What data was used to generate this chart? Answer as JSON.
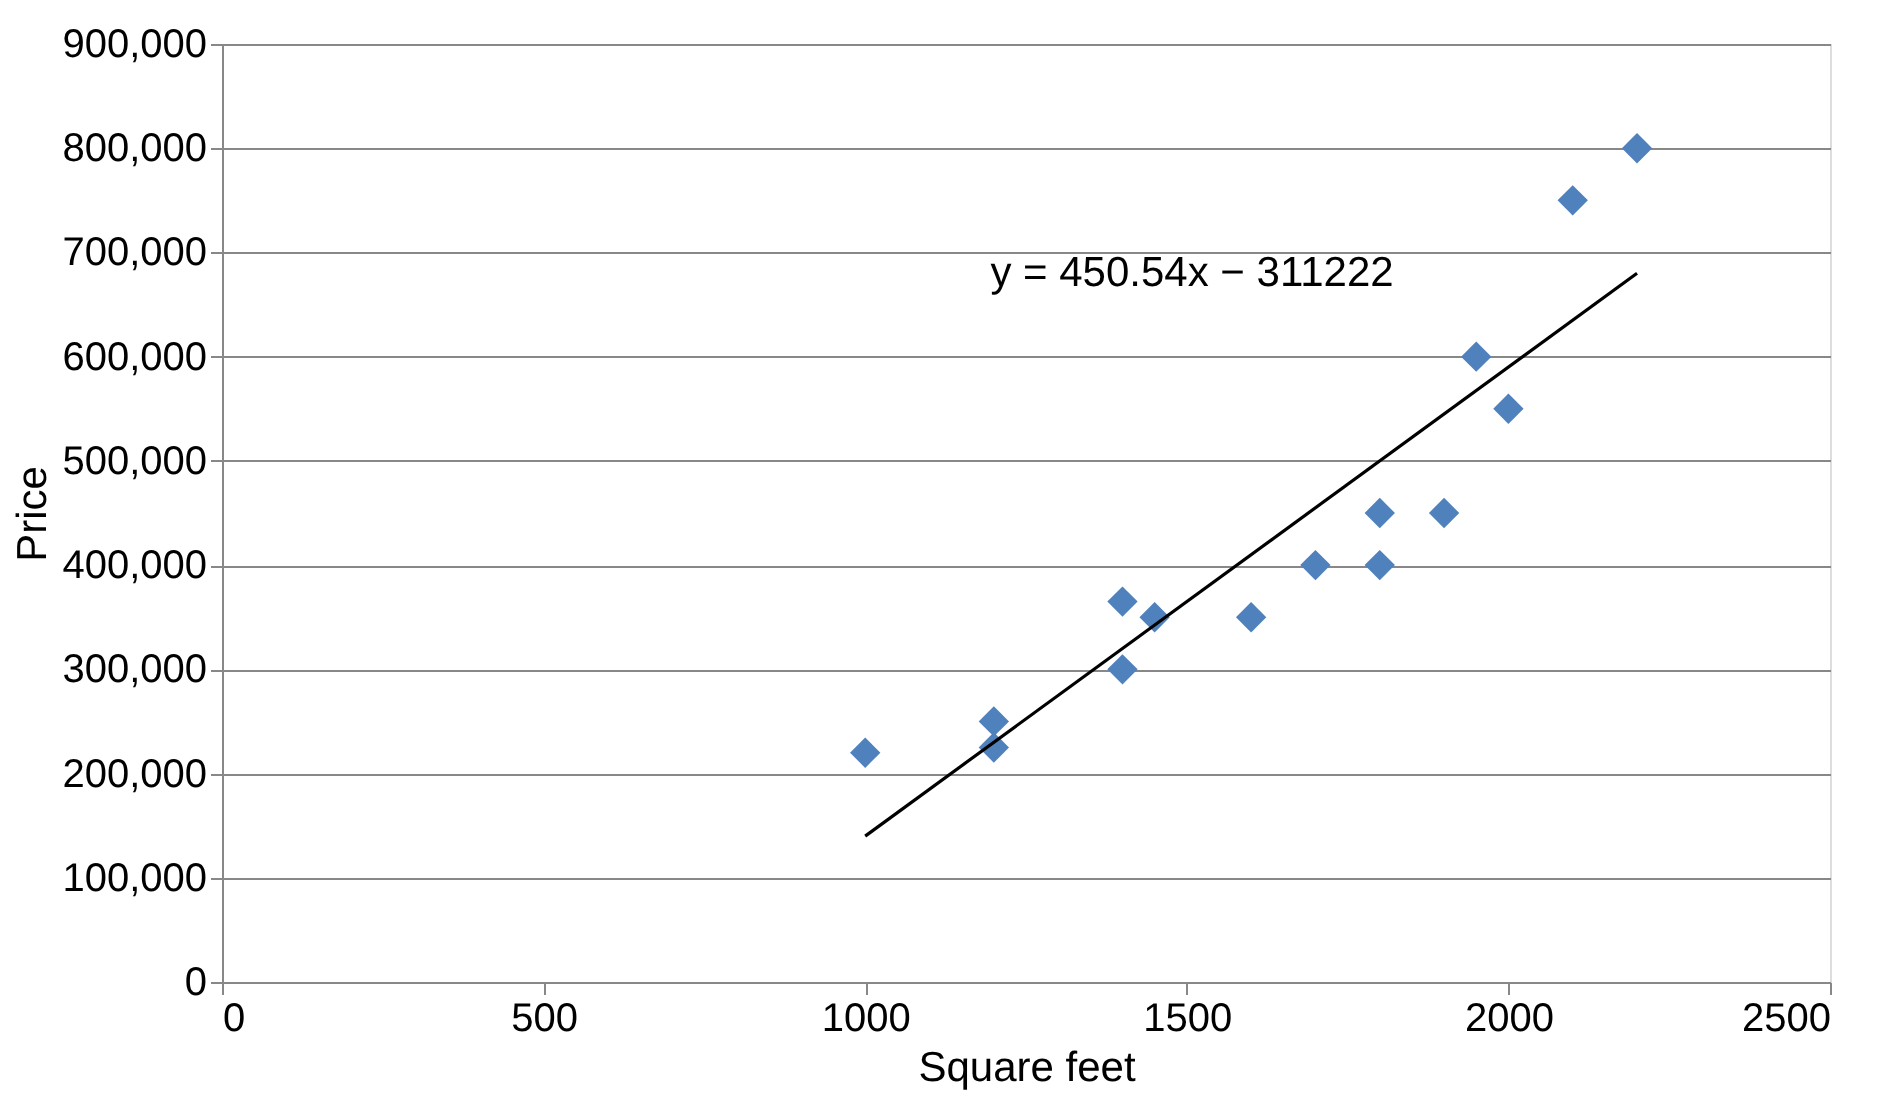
{
  "chart_data": {
    "type": "scatter",
    "xlabel": "Square feet",
    "ylabel": "Price",
    "xlim": [
      0,
      2500
    ],
    "xticks": [
      0,
      500,
      1000,
      1500,
      2000,
      2500
    ],
    "ylim": [
      0,
      900000
    ],
    "yticks": [
      0,
      {
        "value": 100000,
        "label": "100,000"
      },
      {
        "value": 200000,
        "label": "200,000"
      },
      {
        "value": 300000,
        "label": "300,000"
      },
      {
        "value": 400000,
        "label": "400,000"
      },
      {
        "value": 500000,
        "label": "500,000"
      },
      {
        "value": 600000,
        "label": "600,000"
      },
      {
        "value": 700000,
        "label": "700,000"
      },
      {
        "value": 800000,
        "label": "800,000"
      },
      {
        "value": 900000,
        "label": "900,000"
      }
    ],
    "grid": "y",
    "legend": false,
    "marker": "diamond",
    "series": [
      {
        "color": "#4f81bd",
        "x": [
          1000,
          1200,
          1200,
          1400,
          1400,
          1450,
          1600,
          1700,
          1800,
          1800,
          1900,
          1950,
          2000,
          2100,
          2200
        ],
        "values": [
          220000,
          250000,
          225000,
          365000,
          300000,
          350000,
          350000,
          400000,
          450000,
          400000,
          450000,
          600000,
          550000,
          750000,
          800000
        ]
      },
      {
        "type": "line",
        "color": "#000000",
        "line_style": "solid",
        "marker": "none",
        "x": [
          1000,
          2200
        ],
        "values": [
          140000,
          680000
        ]
      }
    ],
    "annotations": [
      "y = 450.54x − 311222"
    ]
  }
}
